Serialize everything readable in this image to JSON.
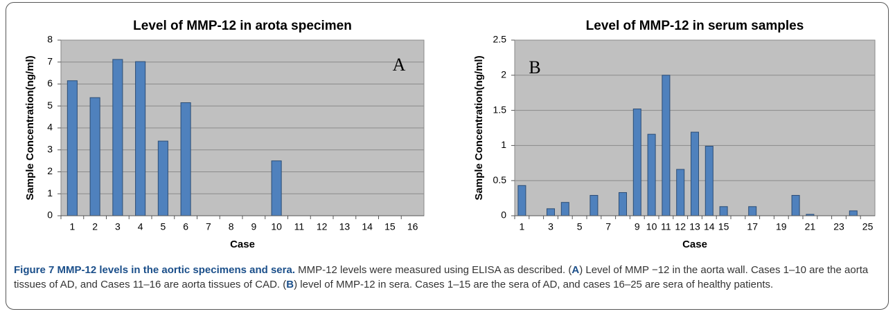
{
  "chart_data": [
    {
      "type": "bar",
      "title": "Level of MMP-12 in arota specimen",
      "x_label": "Case",
      "y_label": "Sample Concentration(ng/ml)",
      "annotation": "A",
      "categories": [
        "1",
        "2",
        "3",
        "4",
        "5",
        "6",
        "7",
        "8",
        "9",
        "10",
        "11",
        "12",
        "13",
        "14",
        "15",
        "16"
      ],
      "values": [
        6.15,
        5.38,
        7.12,
        7.02,
        3.4,
        5.15,
        0,
        0,
        0,
        2.5,
        0,
        0,
        0,
        0,
        0,
        0
      ],
      "color": "#4f81bd",
      "ylim": [
        0,
        8
      ],
      "yticks": [
        0,
        1,
        2,
        3,
        4,
        5,
        6,
        7,
        8
      ],
      "grid": true
    },
    {
      "type": "bar",
      "title": "Level of MMP-12 in serum samples",
      "x_label": "Case",
      "y_label": "Sample Concentration(ng/ml)",
      "annotation": "B",
      "categories": [
        "1",
        null,
        "3",
        null,
        "5",
        null,
        "7",
        null,
        "9",
        "10",
        "11",
        "12",
        "13",
        "14",
        "15",
        null,
        "17",
        null,
        "19",
        null,
        "21",
        null,
        "23",
        null,
        "25"
      ],
      "values": [
        0.43,
        0,
        0.1,
        0.19,
        0,
        0.29,
        0,
        0.33,
        1.52,
        1.16,
        2.0,
        0.66,
        1.19,
        0.99,
        0.13,
        0,
        0.13,
        0,
        0,
        0.29,
        0.02,
        0,
        0,
        0.07,
        0
      ],
      "color": "#4f81bd",
      "ylim": [
        0,
        2.5
      ],
      "yticks": [
        0,
        0.5,
        1,
        1.5,
        2,
        2.5
      ],
      "grid": true
    }
  ],
  "caption": {
    "title": "Figure 7 MMP-12 levels in the aortic specimens and sera.",
    "body": [
      " MMP-12 levels were measured using ELISA as described. (",
      "A",
      ") Level of MMP −12 in the aorta wall. Cases 1–10 are the aorta tissues of AD, and Cases 11–16 are aorta tissues of CAD. (",
      "B",
      ") level of MMP-12 in sera. Cases 1–15 are the sera of AD, and cases 16–25 are sera of healthy patients."
    ],
    "bold": [
      false,
      true,
      false,
      true,
      false
    ]
  }
}
